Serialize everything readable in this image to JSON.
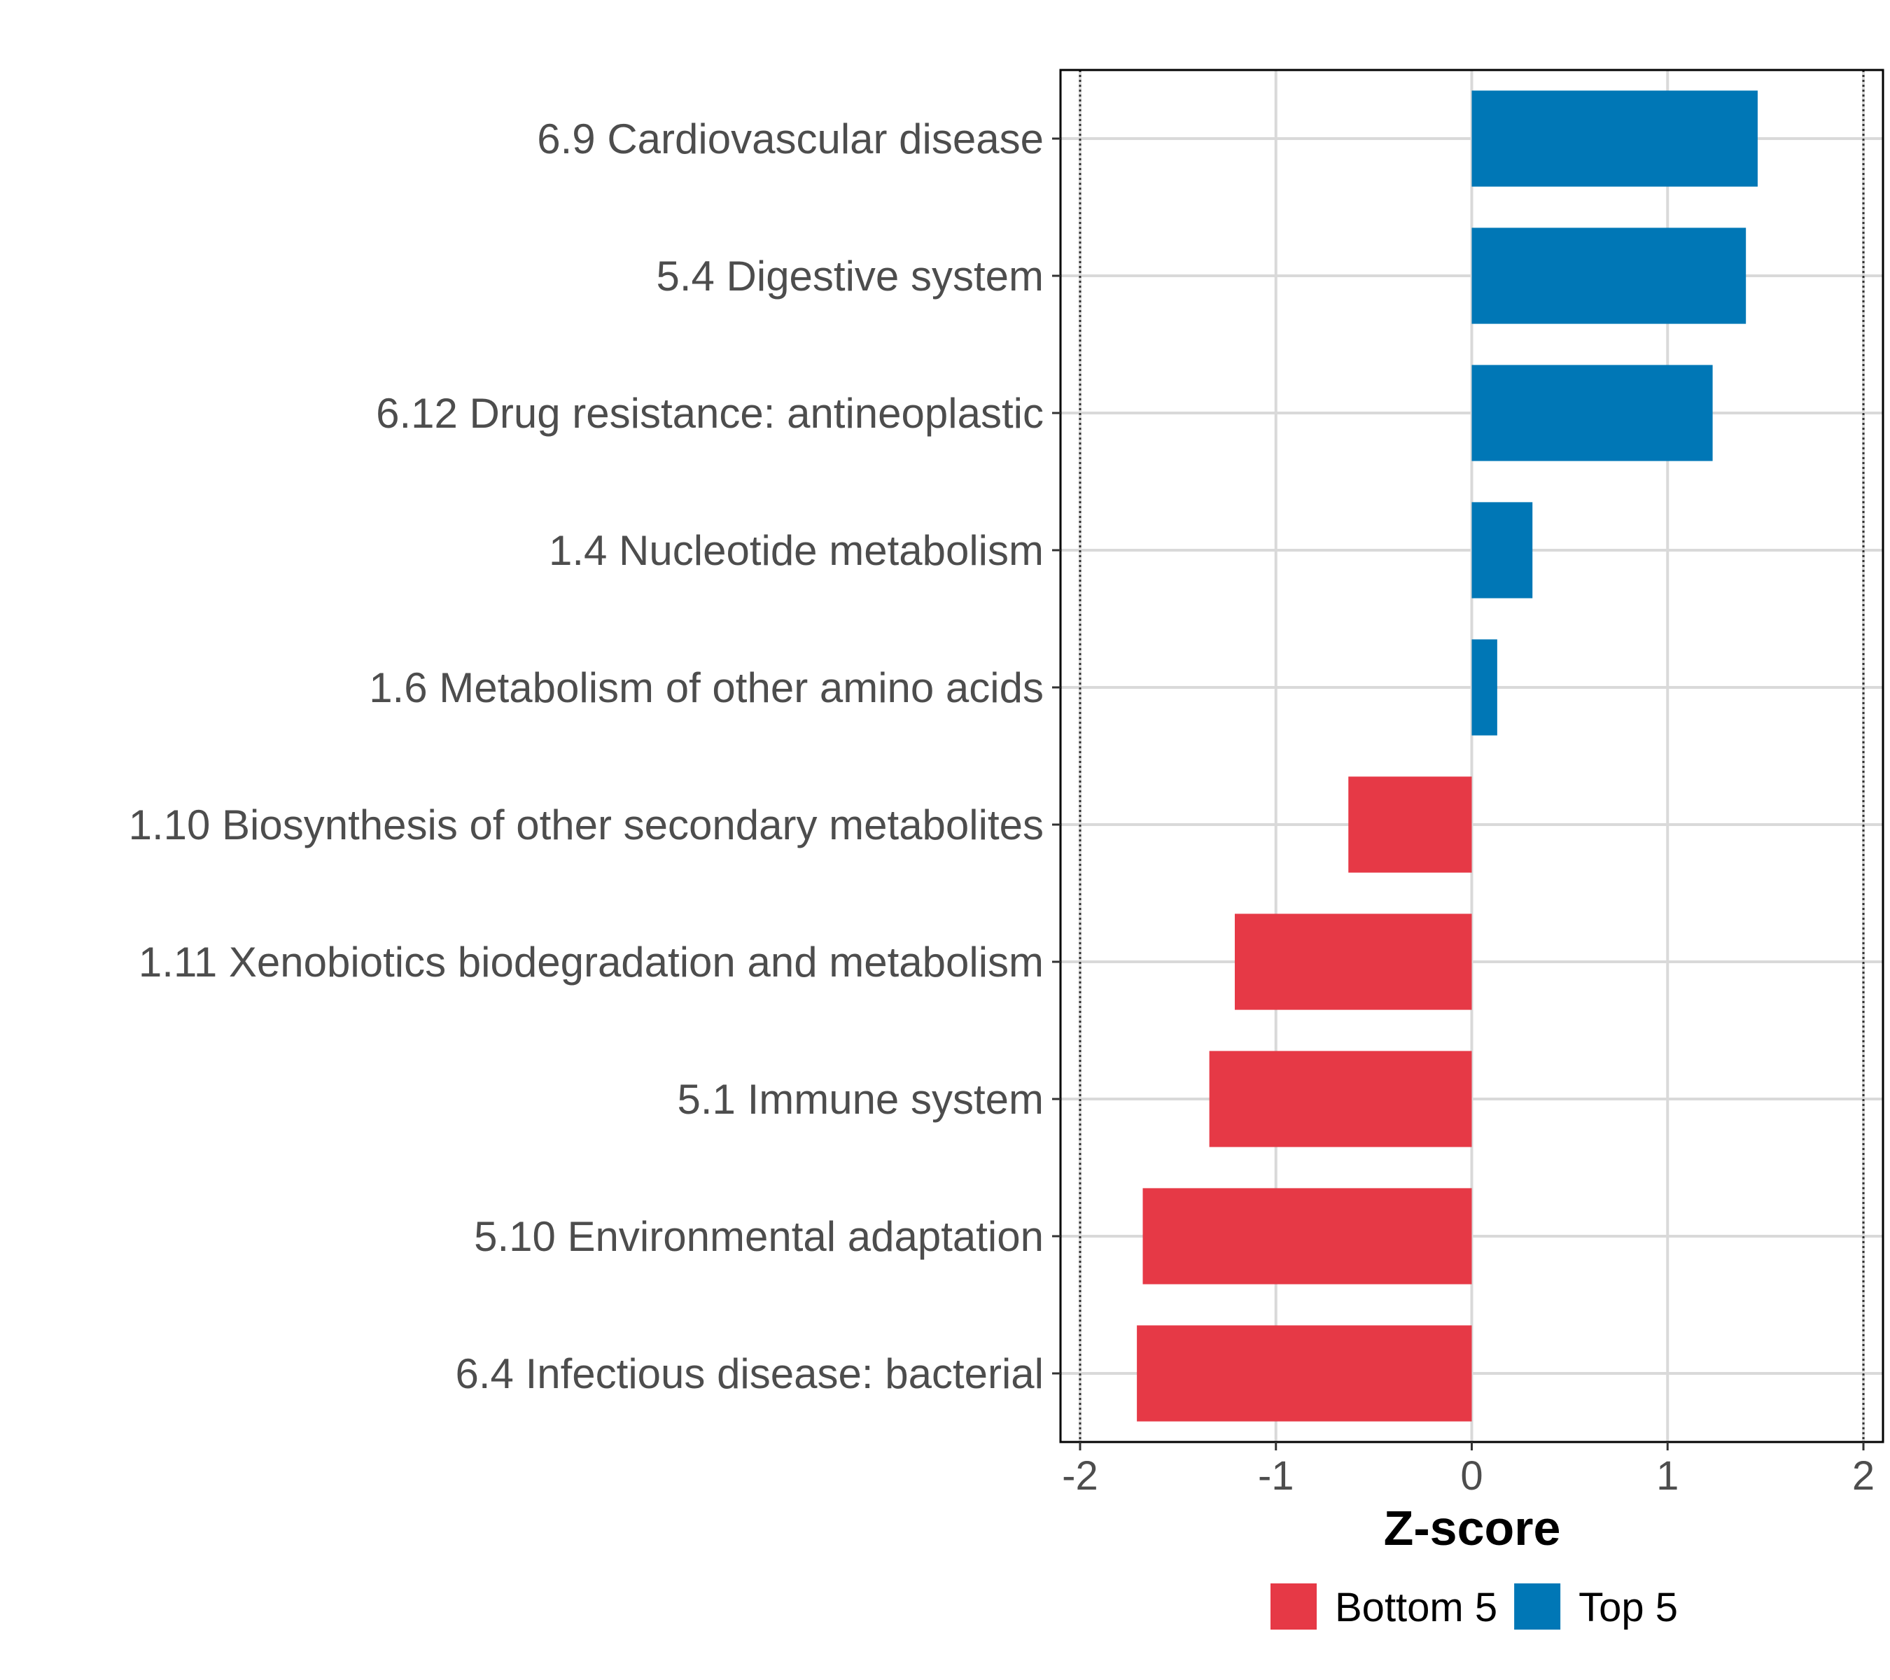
{
  "chart_data": {
    "type": "bar",
    "orientation": "horizontal",
    "title": "",
    "xlabel": "Z-score",
    "ylabel": "",
    "xlim": [
      -2.1,
      2.1
    ],
    "xticks": [
      -2,
      -1,
      0,
      1,
      2
    ],
    "xtick_labels": [
      "-2",
      "-1",
      "0",
      "1",
      "2"
    ],
    "reference_lines": [
      -2,
      2
    ],
    "grid": true,
    "legend_position": "bottom",
    "categories": [
      "6.9 Cardiovascular disease",
      "5.4 Digestive system",
      "6.12 Drug resistance: antineoplastic",
      "1.4 Nucleotide metabolism",
      "1.6 Metabolism of other amino acids",
      "1.10 Biosynthesis of other secondary metabolites",
      "1.11 Xenobiotics biodegradation and metabolism",
      "5.1 Immune system",
      "5.10 Environmental adaptation",
      "6.4 Infectious disease: bacterial"
    ],
    "values": [
      1.46,
      1.4,
      1.23,
      0.31,
      0.13,
      -0.63,
      -1.21,
      -1.34,
      -1.68,
      -1.71
    ],
    "groups": [
      "Top 5",
      "Top 5",
      "Top 5",
      "Top 5",
      "Top 5",
      "Bottom 5",
      "Bottom 5",
      "Bottom 5",
      "Bottom 5",
      "Bottom 5"
    ],
    "legend": [
      {
        "name": "Bottom 5",
        "color": "#e63946"
      },
      {
        "name": "Top 5",
        "color": "#0077b6"
      }
    ]
  }
}
